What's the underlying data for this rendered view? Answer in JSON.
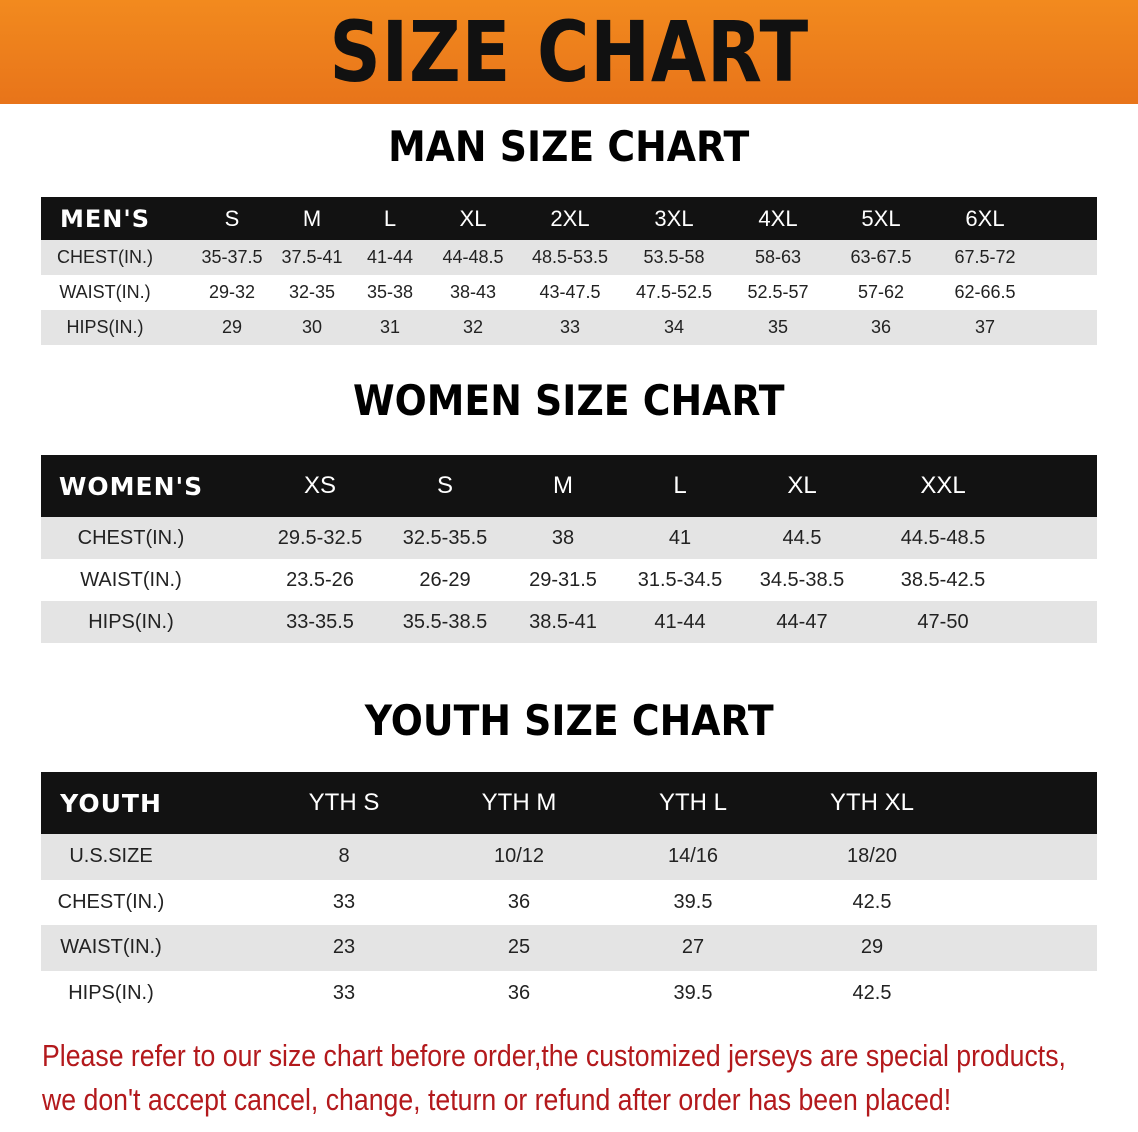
{
  "banner_title": "SIZE CHART",
  "men": {
    "title": "MAN SIZE CHART",
    "header": [
      "MEN'S",
      "S",
      "M",
      "L",
      "XL",
      "2XL",
      "3XL",
      "4XL",
      "5XL",
      "6XL"
    ],
    "rows": [
      [
        "CHEST(IN.)",
        "35-37.5",
        "37.5-41",
        "41-44",
        "44-48.5",
        "48.5-53.5",
        "53.5-58",
        "58-63",
        "63-67.5",
        "67.5-72"
      ],
      [
        "WAIST(IN.)",
        "29-32",
        "32-35",
        "35-38",
        "38-43",
        "43-47.5",
        "47.5-52.5",
        "52.5-57",
        "57-62",
        "62-66.5"
      ],
      [
        "HIPS(IN.)",
        "29",
        "30",
        "31",
        "32",
        "33",
        "34",
        "35",
        "36",
        "37"
      ]
    ]
  },
  "women": {
    "title": "WOMEN SIZE CHART",
    "header": [
      "WOMEN'S",
      "XS",
      "S",
      "M",
      "L",
      "XL",
      "XXL"
    ],
    "rows": [
      [
        "CHEST(IN.)",
        "29.5-32.5",
        "32.5-35.5",
        "38",
        "41",
        "44.5",
        "44.5-48.5"
      ],
      [
        "WAIST(IN.)",
        "23.5-26",
        "26-29",
        "29-31.5",
        "31.5-34.5",
        "34.5-38.5",
        "38.5-42.5"
      ],
      [
        "HIPS(IN.)",
        "33-35.5",
        "35.5-38.5",
        "38.5-41",
        "41-44",
        "44-47",
        "47-50"
      ]
    ]
  },
  "youth": {
    "title": "YOUTH SIZE CHART",
    "header": [
      "YOUTH",
      "YTH S",
      "YTH M",
      "YTH L",
      "YTH XL"
    ],
    "rows": [
      [
        "U.S.SIZE",
        "8",
        "10/12",
        "14/16",
        "18/20"
      ],
      [
        "CHEST(IN.)",
        "33",
        "36",
        "39.5",
        "42.5"
      ],
      [
        "WAIST(IN.)",
        "23",
        "25",
        "27",
        "29"
      ],
      [
        "HIPS(IN.)",
        "33",
        "36",
        "39.5",
        "42.5"
      ]
    ]
  },
  "notice": [
    "Please refer to our size chart before order,the customized jerseys are special products,",
    "we don't accept cancel, change, teturn or refund after order has been placed!"
  ],
  "colors": {
    "banner": "#ee801c",
    "notice": "#b3191c",
    "header_row": "#121212",
    "stripe": "#e4e4e4"
  }
}
